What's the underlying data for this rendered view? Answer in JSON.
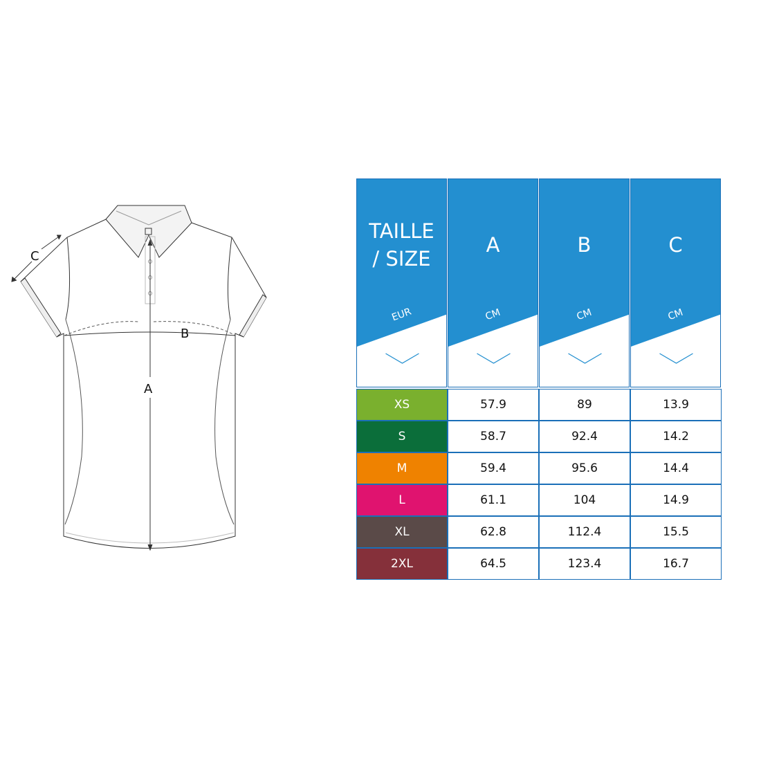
{
  "diagram": {
    "labels": {
      "a": "A",
      "b": "B",
      "c": "C"
    }
  },
  "table": {
    "header_color": "#238fd0",
    "border_color": "#1a6fb8",
    "headers": [
      {
        "title": "TAILLE / SIZE",
        "line1": "TAILLE",
        "line2": "/ SIZE",
        "unit": "EUR"
      },
      {
        "title": "A",
        "unit": "CM"
      },
      {
        "title": "B",
        "unit": "CM"
      },
      {
        "title": "C",
        "unit": "CM"
      }
    ],
    "rows": [
      {
        "size": "XS",
        "color": "#7ab02e",
        "a": "57.9",
        "b": "89",
        "c": "13.9"
      },
      {
        "size": "S",
        "color": "#0b6e3a",
        "a": "58.7",
        "b": "92.4",
        "c": "14.2"
      },
      {
        "size": "M",
        "color": "#ef8200",
        "a": "59.4",
        "b": "95.6",
        "c": "14.4"
      },
      {
        "size": "L",
        "color": "#e0136f",
        "a": "61.1",
        "b": "104",
        "c": "14.9"
      },
      {
        "size": "XL",
        "color": "#5a4a48",
        "a": "62.8",
        "b": "112.4",
        "c": "15.5"
      },
      {
        "size": "2XL",
        "color": "#85303a",
        "a": "64.5",
        "b": "123.4",
        "c": "16.7"
      }
    ]
  }
}
